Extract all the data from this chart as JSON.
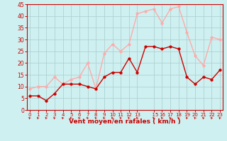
{
  "x": [
    0,
    1,
    2,
    3,
    4,
    5,
    6,
    7,
    8,
    9,
    10,
    11,
    12,
    13,
    14,
    15,
    16,
    17,
    18,
    19,
    20,
    21,
    22,
    23
  ],
  "wind_avg": [
    6,
    6,
    4,
    7,
    11,
    11,
    11,
    10,
    9,
    14,
    16,
    16,
    22,
    16,
    27,
    27,
    26,
    27,
    26,
    14,
    11,
    14,
    13,
    17
  ],
  "wind_gust": [
    9,
    10,
    10,
    14,
    11,
    13,
    14,
    20,
    9,
    24,
    28,
    25,
    28,
    41,
    42,
    43,
    37,
    43,
    44,
    33,
    23,
    19,
    31,
    30
  ],
  "avg_color": "#cc0000",
  "gust_color": "#ffaaaa",
  "bg_color": "#cff0f0",
  "grid_color": "#aacccc",
  "xlabel": "Vent moyen/en rafales ( km/h )",
  "ylim": [
    0,
    45
  ],
  "yticks": [
    0,
    5,
    10,
    15,
    20,
    25,
    30,
    35,
    40,
    45
  ],
  "xtick_labels": [
    "0",
    "1",
    "2",
    "3",
    "4",
    "5",
    "6",
    "7",
    "8",
    "9",
    "10",
    "11",
    "12",
    "13",
    "  15",
    "16",
    "17",
    "18",
    "19",
    "20",
    "21",
    "22",
    "23"
  ],
  "xtick_positions": [
    0,
    1,
    2,
    3,
    4,
    5,
    6,
    7,
    8,
    9,
    10,
    11,
    12,
    13,
    15,
    16,
    17,
    18,
    19,
    20,
    21,
    22,
    23
  ],
  "tick_color": "#cc0000",
  "label_color": "#cc0000",
  "line_width": 1.0,
  "marker_size": 2.5
}
